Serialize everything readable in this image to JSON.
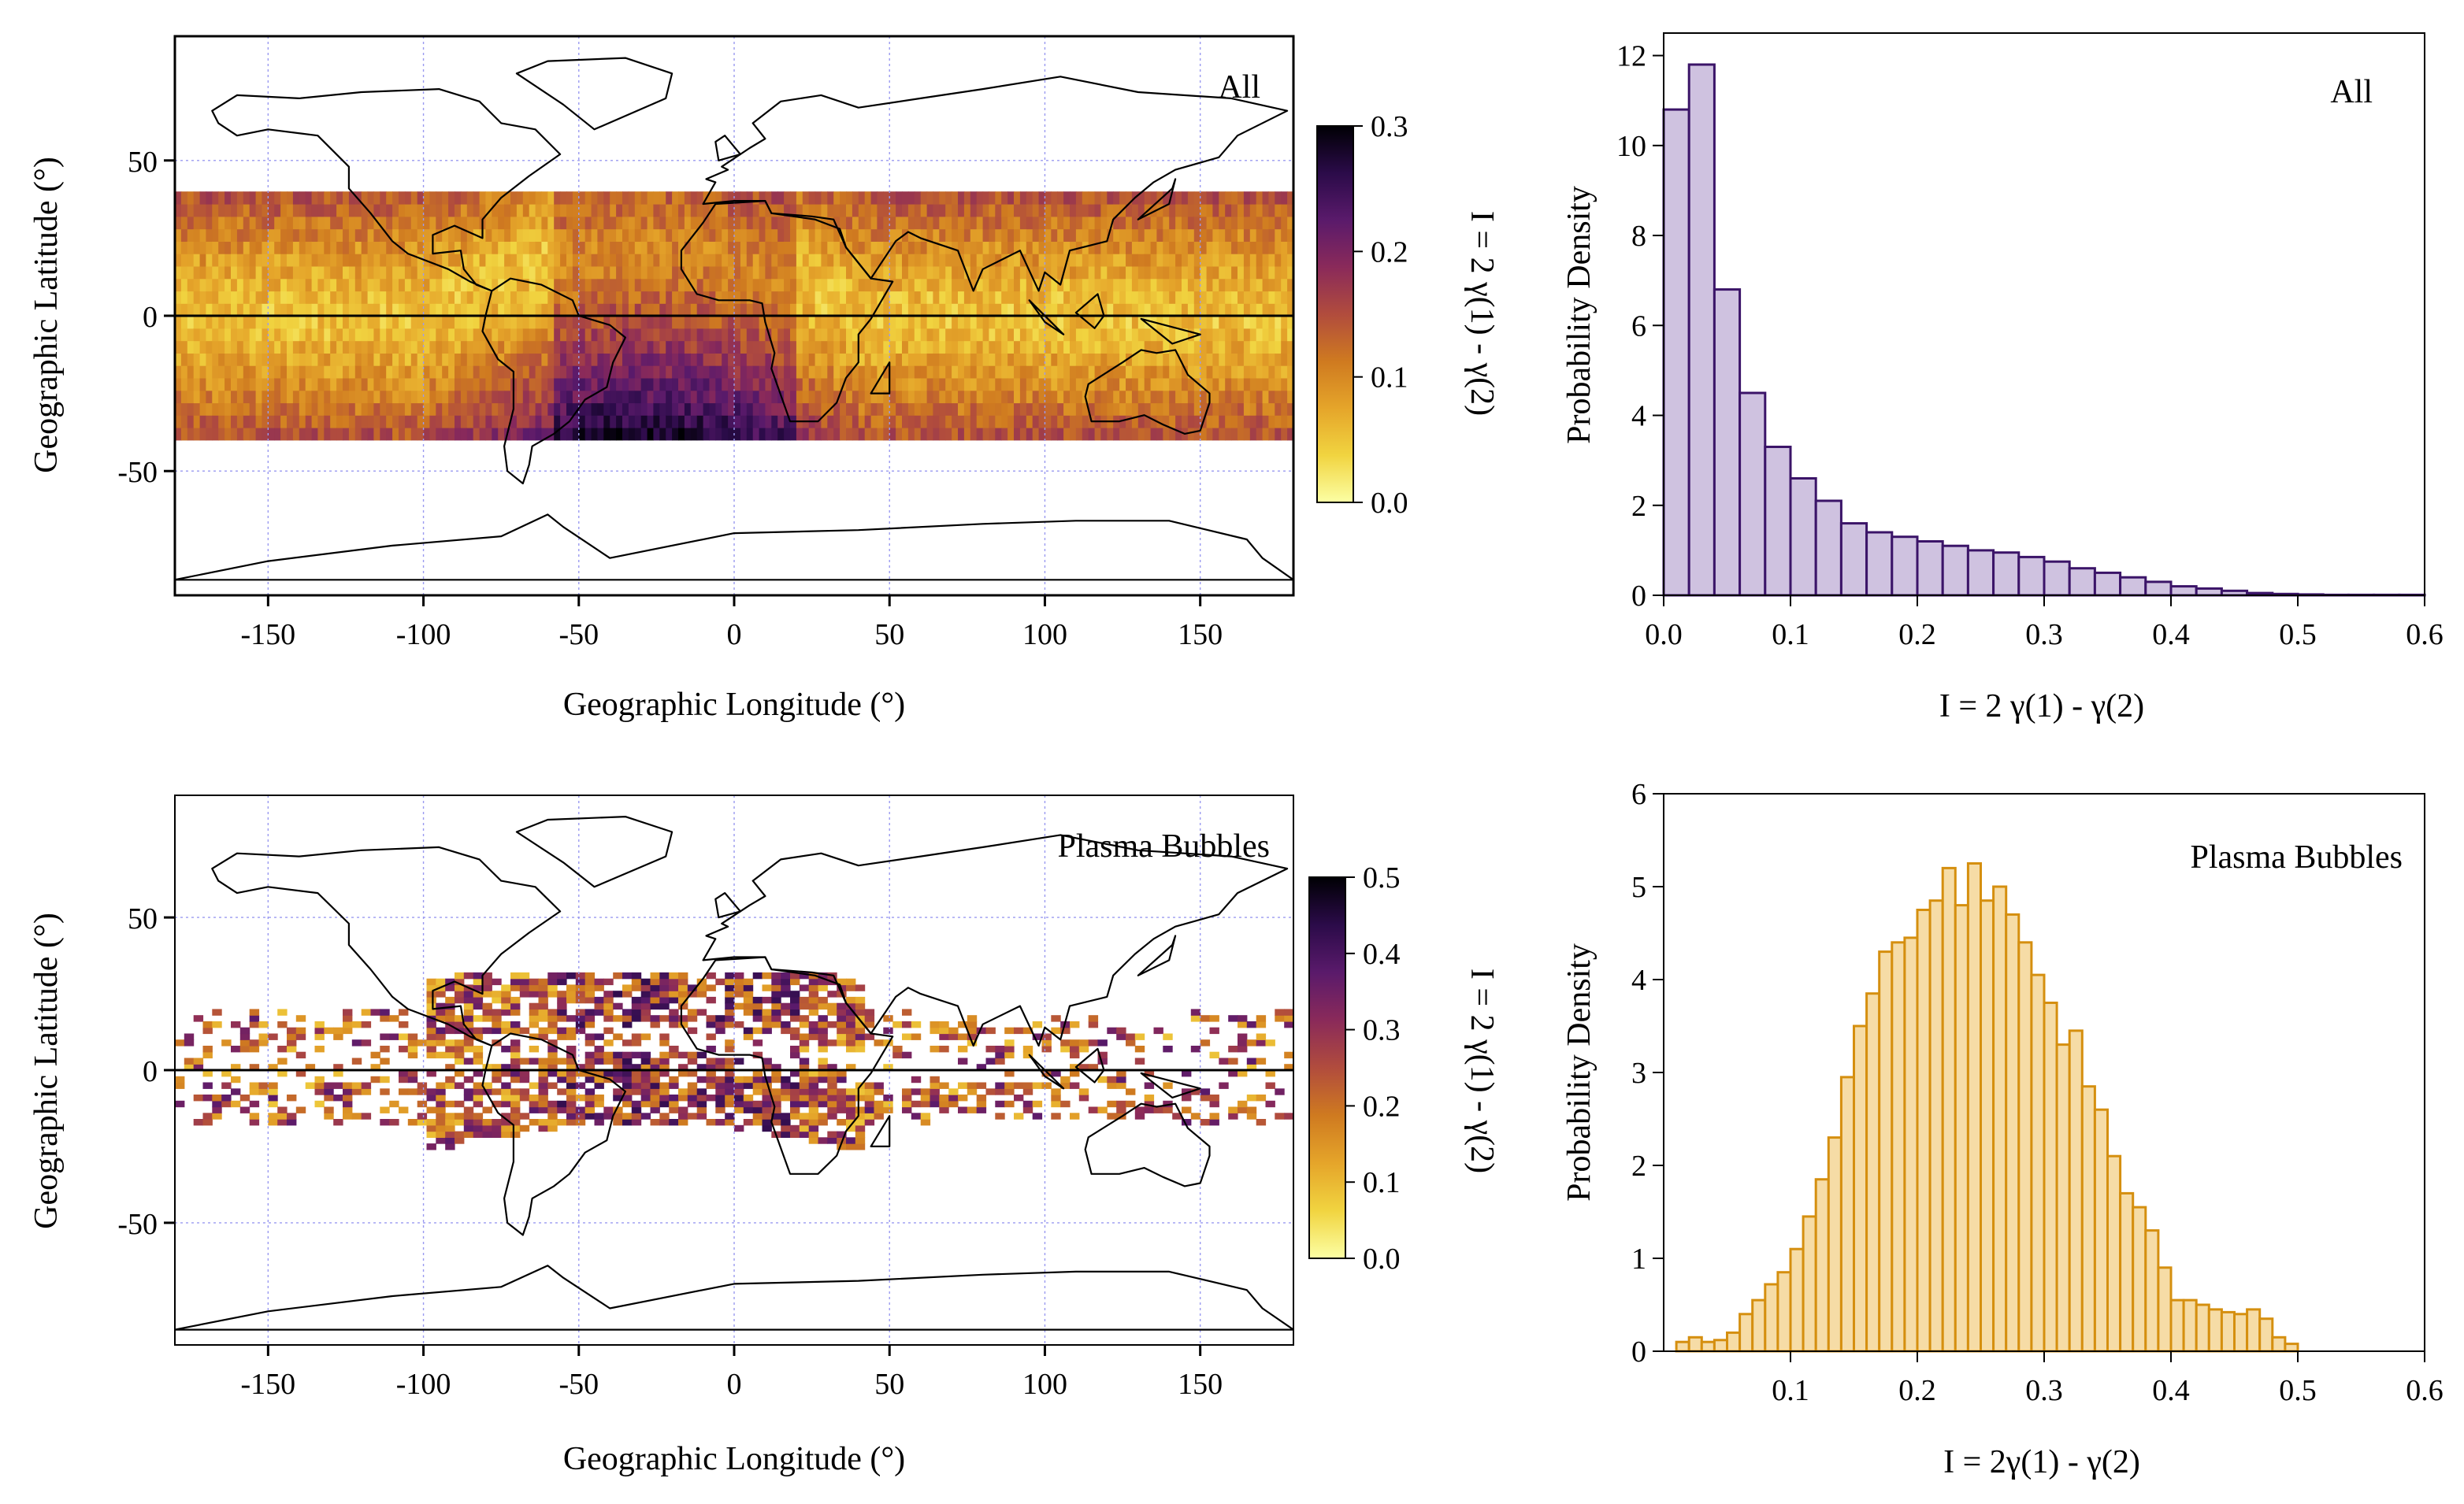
{
  "colors": {
    "all_hist_fill": "#cfc2e0",
    "all_hist_edge": "#3b1468",
    "pb_hist_fill": "#f6dca6",
    "pb_hist_edge": "#d58f0f",
    "grid": "#9a9af0",
    "equator": "#000000"
  },
  "colormap_stops": [
    "#fcffa4",
    "#f1d440",
    "#e5a52a",
    "#cf7a20",
    "#b14c3d",
    "#8a2a5a",
    "#5a1a6b",
    "#2b0b49",
    "#000004"
  ],
  "chart_data": [
    {
      "id": "map-all",
      "type": "heatmap",
      "label": "All",
      "xlabel": "Geographic Longitude (°)",
      "ylabel": "Geographic Latitude (°)",
      "xlim": [
        -180,
        180
      ],
      "ylim": [
        -90,
        90
      ],
      "xticks": [
        -150,
        -100,
        -50,
        0,
        50,
        100,
        150
      ],
      "yticks": [
        -50,
        0,
        50
      ],
      "colorbar": {
        "label": "I = 2 γ(1) - γ(2)",
        "range": [
          0.0,
          0.3
        ],
        "ticks": [
          "0.0",
          "0.1",
          "0.2",
          "0.3"
        ]
      },
      "lat_band": [
        -40,
        40
      ]
    },
    {
      "id": "hist-all",
      "type": "bar",
      "label": "All",
      "xlabel": "I = 2 γ(1) - γ(2)",
      "ylabel": "Probability Density",
      "xlim": [
        0.0,
        0.6
      ],
      "ylim": [
        0,
        12.5
      ],
      "xticks": [
        "0.0",
        "0.1",
        "0.2",
        "0.3",
        "0.4",
        "0.5",
        "0.6"
      ],
      "yticks": [
        "0",
        "2",
        "4",
        "6",
        "8",
        "10",
        "12"
      ],
      "bin_start": 0.0,
      "bin_width": 0.02,
      "values": [
        10.8,
        11.8,
        6.8,
        4.5,
        3.3,
        2.6,
        2.1,
        1.6,
        1.4,
        1.3,
        1.2,
        1.1,
        1.0,
        0.95,
        0.85,
        0.75,
        0.6,
        0.5,
        0.4,
        0.3,
        0.2,
        0.15,
        0.1,
        0.05,
        0.03,
        0.02,
        0.01,
        0.01,
        0.01,
        0.01
      ]
    },
    {
      "id": "map-pb",
      "type": "heatmap",
      "label": "Plasma Bubbles",
      "xlabel": "Geographic Longitude (°)",
      "ylabel": "Geographic Latitude (°)",
      "xlim": [
        -180,
        180
      ],
      "ylim": [
        -90,
        90
      ],
      "xticks": [
        -150,
        -100,
        -50,
        0,
        50,
        100,
        150
      ],
      "yticks": [
        -50,
        0,
        50
      ],
      "colorbar": {
        "label": "I = 2 γ(1) - γ(2)",
        "range": [
          0.0,
          0.5
        ],
        "ticks": [
          "0.0",
          "0.1",
          "0.2",
          "0.3",
          "0.4",
          "0.5"
        ]
      }
    },
    {
      "id": "hist-pb",
      "type": "bar",
      "label": "Plasma Bubbles",
      "xlabel": "I = 2γ(1) - γ(2)",
      "ylabel": "Probability Density",
      "xlim": [
        0.0,
        0.6
      ],
      "ylim": [
        0,
        6
      ],
      "xticks": [
        "0.1",
        "0.2",
        "0.3",
        "0.4",
        "0.5",
        "0.6"
      ],
      "yticks": [
        "0",
        "1",
        "2",
        "3",
        "4",
        "5",
        "6"
      ],
      "bin_start": 0.01,
      "bin_width": 0.01,
      "values": [
        0.1,
        0.15,
        0.1,
        0.12,
        0.2,
        0.4,
        0.55,
        0.72,
        0.85,
        1.1,
        1.45,
        1.85,
        2.3,
        2.95,
        3.5,
        3.85,
        4.3,
        4.4,
        4.45,
        4.75,
        4.85,
        5.2,
        4.8,
        5.25,
        4.85,
        5.0,
        4.7,
        4.4,
        4.05,
        3.75,
        3.3,
        3.45,
        2.85,
        2.6,
        2.1,
        1.7,
        1.55,
        1.3,
        0.9,
        0.55,
        0.55,
        0.5,
        0.45,
        0.42,
        0.4,
        0.45,
        0.35,
        0.15,
        0.08
      ]
    }
  ]
}
